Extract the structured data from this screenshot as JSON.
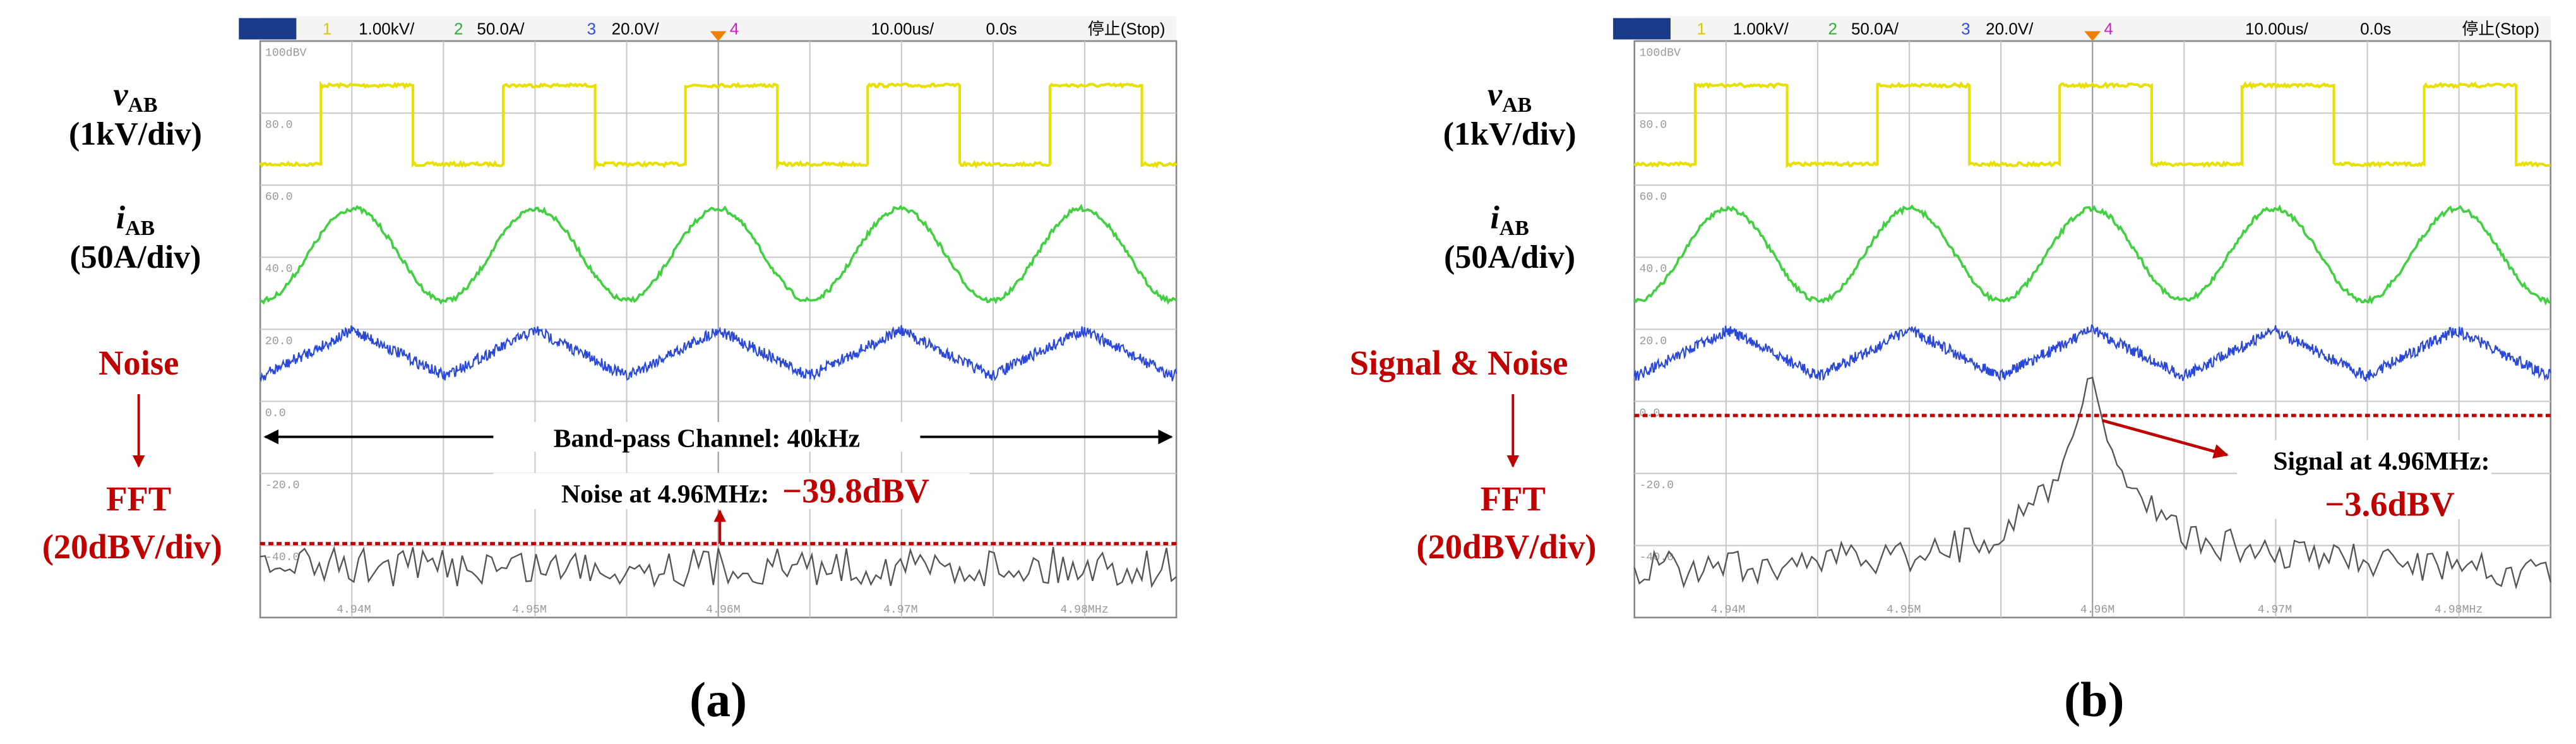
{
  "panels": [
    {
      "caption": "(a)",
      "status_bar": {
        "ch1": "1",
        "ch1_scale": "1.00kV/",
        "ch2": "2",
        "ch2_scale": "50.0A/",
        "ch3": "3",
        "ch3_scale": "20.0V/",
        "ch4": "4",
        "timebase": "10.00us/",
        "delay": "0.0s",
        "state": "停止(Stop)"
      },
      "grid_labels": [
        "100dBV",
        "80.0",
        "60.0",
        "40.0",
        "20.0",
        "0.0",
        "-20.0",
        "-40.0"
      ],
      "freq_labels": [
        "4.94M",
        "4.95M",
        "4.96M",
        "4.97M",
        "4.98MHz"
      ],
      "channel_labels": [
        {
          "symbol": "v",
          "subscript": "AB",
          "scale": "(1kV/div)"
        },
        {
          "symbol": "i",
          "subscript": "AB",
          "scale": "(50A/div)"
        }
      ],
      "noise_label": "Noise",
      "fft_label": "FFT",
      "fft_scale": "(20dBV/div)",
      "annotations": {
        "band": "Band-pass Channel: 40kHz",
        "measure_label": "Noise at 4.96MHz:",
        "measure_value": "−39.8dBV"
      }
    },
    {
      "caption": "(b)",
      "status_bar": {
        "ch1": "1",
        "ch1_scale": "1.00kV/",
        "ch2": "2",
        "ch2_scale": "50.0A/",
        "ch3": "3",
        "ch3_scale": "20.0V/",
        "ch4": "4",
        "timebase": "10.00us/",
        "delay": "0.0s",
        "state": "停止(Stop)"
      },
      "grid_labels": [
        "100dBV",
        "80.0",
        "60.0",
        "40.0",
        "20.0",
        "0.0",
        "-20.0",
        "-40.0"
      ],
      "freq_labels": [
        "4.94M",
        "4.95M",
        "4.96M",
        "4.97M",
        "4.98MHz"
      ],
      "channel_labels": [
        {
          "symbol": "v",
          "subscript": "AB",
          "scale": "(1kV/div)"
        },
        {
          "symbol": "i",
          "subscript": "AB",
          "scale": "(50A/div)"
        }
      ],
      "noise_label": "Signal & Noise",
      "fft_label": "FFT",
      "fft_scale": "(20dBV/div)",
      "annotations": {
        "measure_label": "Signal at 4.96MHz:",
        "measure_value": "−3.6dBV"
      }
    }
  ]
}
